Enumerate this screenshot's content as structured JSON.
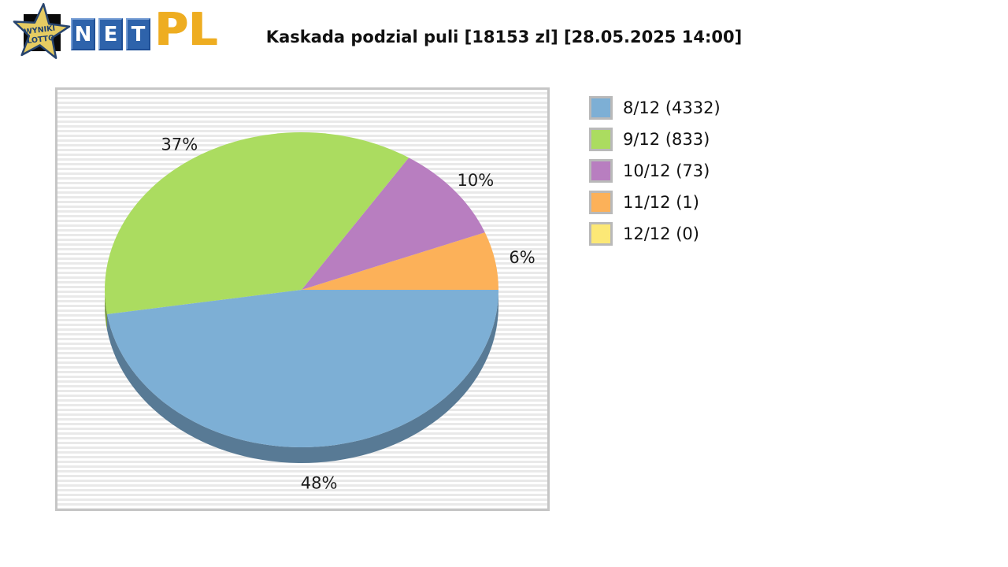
{
  "logo": {
    "star_line1": "WYNIKI",
    "star_line2": "LOTTO",
    "net_letters": [
      "N",
      "E",
      "T"
    ],
    "suffix": "PL",
    "star_fill": "#e5cb62",
    "star_outline": "#27446e",
    "tile_color": "#2e63ab",
    "suffix_color": "#eead21"
  },
  "chart_data": {
    "type": "pie",
    "three_d": true,
    "title": "Kaskada podzial puli [18153 zl] [28.05.2025 14:00]",
    "game": "Kaskada",
    "pool_amount_zl": 18153,
    "draw_time": "28.05.2025 14:00",
    "legend_position": "right",
    "grid": false,
    "percent_label_suffix": "%",
    "slices": [
      {
        "label": "8/12 (4332)",
        "category": "8/12",
        "winners": 4332,
        "percent": 48,
        "color": "#7dafd5"
      },
      {
        "label": "9/12 (833)",
        "category": "9/12",
        "winners": 833,
        "percent": 37,
        "color": "#abdc60"
      },
      {
        "label": "10/12 (73)",
        "category": "10/12",
        "winners": 73,
        "percent": 10,
        "color": "#b87ec0"
      },
      {
        "label": "11/12 (1)",
        "category": "11/12",
        "winners": 1,
        "percent": 6,
        "color": "#fcb159"
      },
      {
        "label": "12/12 (0)",
        "category": "12/12",
        "winners": 0,
        "percent": 0,
        "color": "#fce876"
      }
    ]
  }
}
